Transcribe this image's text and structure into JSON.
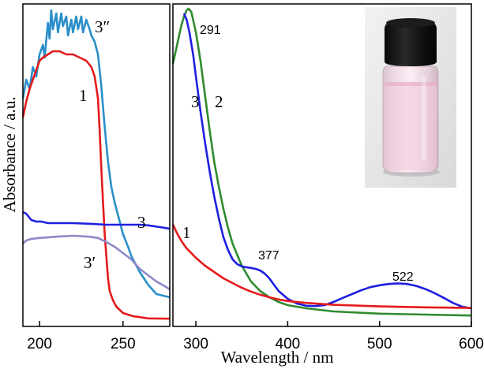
{
  "chart_data": [
    {
      "type": "line",
      "panel": "left",
      "xlabel": "",
      "ylabel": "Absorbance / a.u.",
      "xlim": [
        190,
        278
      ],
      "ylim": [
        0,
        1
      ],
      "x_ticks": [
        "200",
        "250"
      ],
      "y_ticks": [],
      "grid": false,
      "series": [
        {
          "name": "3″",
          "color": "#2a8fc9",
          "points": [
            [
              190,
              0.7
            ],
            [
              192,
              0.76
            ],
            [
              194,
              0.73
            ],
            [
              196,
              0.8
            ],
            [
              198,
              0.77
            ],
            [
              200,
              0.84
            ],
            [
              202,
              0.87
            ],
            [
              203,
              0.83
            ],
            [
              205,
              0.94
            ],
            [
              206,
              0.89
            ],
            [
              207,
              0.98
            ],
            [
              208,
              0.92
            ],
            [
              210,
              0.97
            ],
            [
              211,
              0.91
            ],
            [
              213,
              0.97
            ],
            [
              214,
              0.93
            ],
            [
              216,
              0.96
            ],
            [
              217,
              0.9
            ],
            [
              219,
              0.95
            ],
            [
              220,
              0.91
            ],
            [
              222,
              0.96
            ],
            [
              223,
              0.92
            ],
            [
              225,
              0.96
            ],
            [
              226,
              0.91
            ],
            [
              228,
              0.95
            ],
            [
              230,
              0.92
            ],
            [
              231,
              0.9
            ],
            [
              233,
              0.88
            ],
            [
              235,
              0.84
            ],
            [
              237,
              0.74
            ],
            [
              239,
              0.61
            ],
            [
              241,
              0.5
            ],
            [
              243,
              0.42
            ],
            [
              245,
              0.37
            ],
            [
              248,
              0.31
            ],
            [
              250,
              0.27
            ],
            [
              253,
              0.23
            ],
            [
              255,
              0.2
            ],
            [
              260,
              0.15
            ],
            [
              265,
              0.11
            ],
            [
              270,
              0.08
            ],
            [
              278,
              0.07
            ]
          ]
        },
        {
          "name": "1",
          "color": "#e41a1c",
          "points": [
            [
              190,
              0.64
            ],
            [
              192,
              0.69
            ],
            [
              194,
              0.73
            ],
            [
              196,
              0.76
            ],
            [
              198,
              0.79
            ],
            [
              200,
              0.82
            ],
            [
              202,
              0.83
            ],
            [
              205,
              0.84
            ],
            [
              208,
              0.85
            ],
            [
              212,
              0.85
            ],
            [
              216,
              0.84
            ],
            [
              220,
              0.84
            ],
            [
              224,
              0.83
            ],
            [
              228,
              0.82
            ],
            [
              231,
              0.8
            ],
            [
              233,
              0.77
            ],
            [
              235,
              0.7
            ],
            [
              236,
              0.6
            ],
            [
              237,
              0.48
            ],
            [
              238,
              0.37
            ],
            [
              239,
              0.27
            ],
            [
              240,
              0.2
            ],
            [
              241,
              0.13
            ],
            [
              242,
              0.09
            ],
            [
              244,
              0.06
            ],
            [
              246,
              0.04
            ],
            [
              250,
              0.02
            ],
            [
              256,
              0.01
            ],
            [
              265,
              0.003
            ],
            [
              278,
              0.002
            ]
          ]
        },
        {
          "name": "3",
          "color": "#1f1fe0",
          "points": [
            [
              190,
              0.34
            ],
            [
              192,
              0.335
            ],
            [
              195,
              0.315
            ],
            [
              198,
              0.31
            ],
            [
              201,
              0.31
            ],
            [
              205,
              0.305
            ],
            [
              210,
              0.305
            ],
            [
              215,
              0.305
            ],
            [
              220,
              0.305
            ],
            [
              230,
              0.303
            ],
            [
              240,
              0.3
            ],
            [
              250,
              0.3
            ],
            [
              255,
              0.3
            ],
            [
              260,
              0.3
            ],
            [
              265,
              0.298
            ],
            [
              270,
              0.294
            ],
            [
              275,
              0.29
            ],
            [
              278,
              0.287
            ]
          ]
        },
        {
          "name": "3′",
          "color": "#8a88c8",
          "points": [
            [
              190,
              0.24
            ],
            [
              192,
              0.25
            ],
            [
              195,
              0.255
            ],
            [
              200,
              0.258
            ],
            [
              210,
              0.262
            ],
            [
              220,
              0.265
            ],
            [
              230,
              0.262
            ],
            [
              235,
              0.258
            ],
            [
              240,
              0.245
            ],
            [
              245,
              0.23
            ],
            [
              250,
              0.21
            ],
            [
              255,
              0.19
            ],
            [
              260,
              0.16
            ],
            [
              265,
              0.14
            ],
            [
              270,
              0.12
            ],
            [
              275,
              0.105
            ],
            [
              278,
              0.095
            ]
          ]
        }
      ]
    },
    {
      "type": "line",
      "panel": "right",
      "xlabel": "Wavelength / nm",
      "ylabel": "",
      "xlim": [
        275,
        600
      ],
      "ylim": [
        0,
        1
      ],
      "x_ticks": [
        "300",
        "400",
        "500",
        "600"
      ],
      "y_ticks": [],
      "grid": false,
      "annotations": [
        "291",
        "377",
        "522"
      ],
      "series": [
        {
          "name": "2",
          "color": "#2e8b2e",
          "points": [
            [
              275,
              0.81
            ],
            [
              278,
              0.85
            ],
            [
              281,
              0.89
            ],
            [
              284,
              0.93
            ],
            [
              287,
              0.96
            ],
            [
              290,
              0.98
            ],
            [
              292,
              0.985
            ],
            [
              295,
              0.975
            ],
            [
              300,
              0.91
            ],
            [
              305,
              0.82
            ],
            [
              310,
              0.71
            ],
            [
              315,
              0.6
            ],
            [
              320,
              0.5
            ],
            [
              325,
              0.42
            ],
            [
              330,
              0.35
            ],
            [
              335,
              0.29
            ],
            [
              340,
              0.24
            ],
            [
              350,
              0.17
            ],
            [
              360,
              0.12
            ],
            [
              370,
              0.09
            ],
            [
              380,
              0.07
            ],
            [
              390,
              0.055
            ],
            [
              400,
              0.045
            ],
            [
              420,
              0.035
            ],
            [
              450,
              0.025
            ],
            [
              500,
              0.018
            ],
            [
              550,
              0.015
            ],
            [
              600,
              0.012
            ]
          ]
        },
        {
          "name": "3",
          "color": "#1f1fe0",
          "points": [
            [
              287,
              0.97
            ],
            [
              290,
              0.95
            ],
            [
              293,
              0.91
            ],
            [
              297,
              0.84
            ],
            [
              300,
              0.77
            ],
            [
              305,
              0.66
            ],
            [
              310,
              0.56
            ],
            [
              315,
              0.47
            ],
            [
              320,
              0.39
            ],
            [
              325,
              0.32
            ],
            [
              330,
              0.26
            ],
            [
              335,
              0.22
            ],
            [
              340,
              0.19
            ],
            [
              345,
              0.175
            ],
            [
              350,
              0.168
            ],
            [
              355,
              0.165
            ],
            [
              360,
              0.163
            ],
            [
              365,
              0.16
            ],
            [
              370,
              0.155
            ],
            [
              375,
              0.145
            ],
            [
              380,
              0.13
            ],
            [
              385,
              0.11
            ],
            [
              390,
              0.09
            ],
            [
              400,
              0.065
            ],
            [
              410,
              0.05
            ],
            [
              420,
              0.043
            ],
            [
              430,
              0.042
            ],
            [
              440,
              0.045
            ],
            [
              450,
              0.055
            ],
            [
              460,
              0.068
            ],
            [
              470,
              0.08
            ],
            [
              480,
              0.092
            ],
            [
              490,
              0.102
            ],
            [
              500,
              0.108
            ],
            [
              510,
              0.112
            ],
            [
              520,
              0.114
            ],
            [
              530,
              0.112
            ],
            [
              540,
              0.106
            ],
            [
              550,
              0.096
            ],
            [
              560,
              0.083
            ],
            [
              570,
              0.068
            ],
            [
              580,
              0.052
            ],
            [
              590,
              0.04
            ],
            [
              600,
              0.035
            ]
          ]
        },
        {
          "name": "1",
          "color": "#e41a1c",
          "points": [
            [
              275,
              0.3
            ],
            [
              280,
              0.27
            ],
            [
              285,
              0.245
            ],
            [
              290,
              0.225
            ],
            [
              300,
              0.195
            ],
            [
              310,
              0.17
            ],
            [
              320,
              0.15
            ],
            [
              330,
              0.13
            ],
            [
              340,
              0.115
            ],
            [
              350,
              0.1
            ],
            [
              360,
              0.088
            ],
            [
              370,
              0.078
            ],
            [
              380,
              0.07
            ],
            [
              390,
              0.063
            ],
            [
              400,
              0.058
            ],
            [
              420,
              0.052
            ],
            [
              450,
              0.046
            ],
            [
              500,
              0.041
            ],
            [
              550,
              0.038
            ],
            [
              600,
              0.036
            ]
          ]
        }
      ]
    }
  ],
  "labels": {
    "left": {
      "c3pp": "3″",
      "c1": "1",
      "c3": "3",
      "c3p": "3′"
    },
    "right": {
      "c3": "3",
      "c2": "2",
      "c1": "1"
    }
  }
}
